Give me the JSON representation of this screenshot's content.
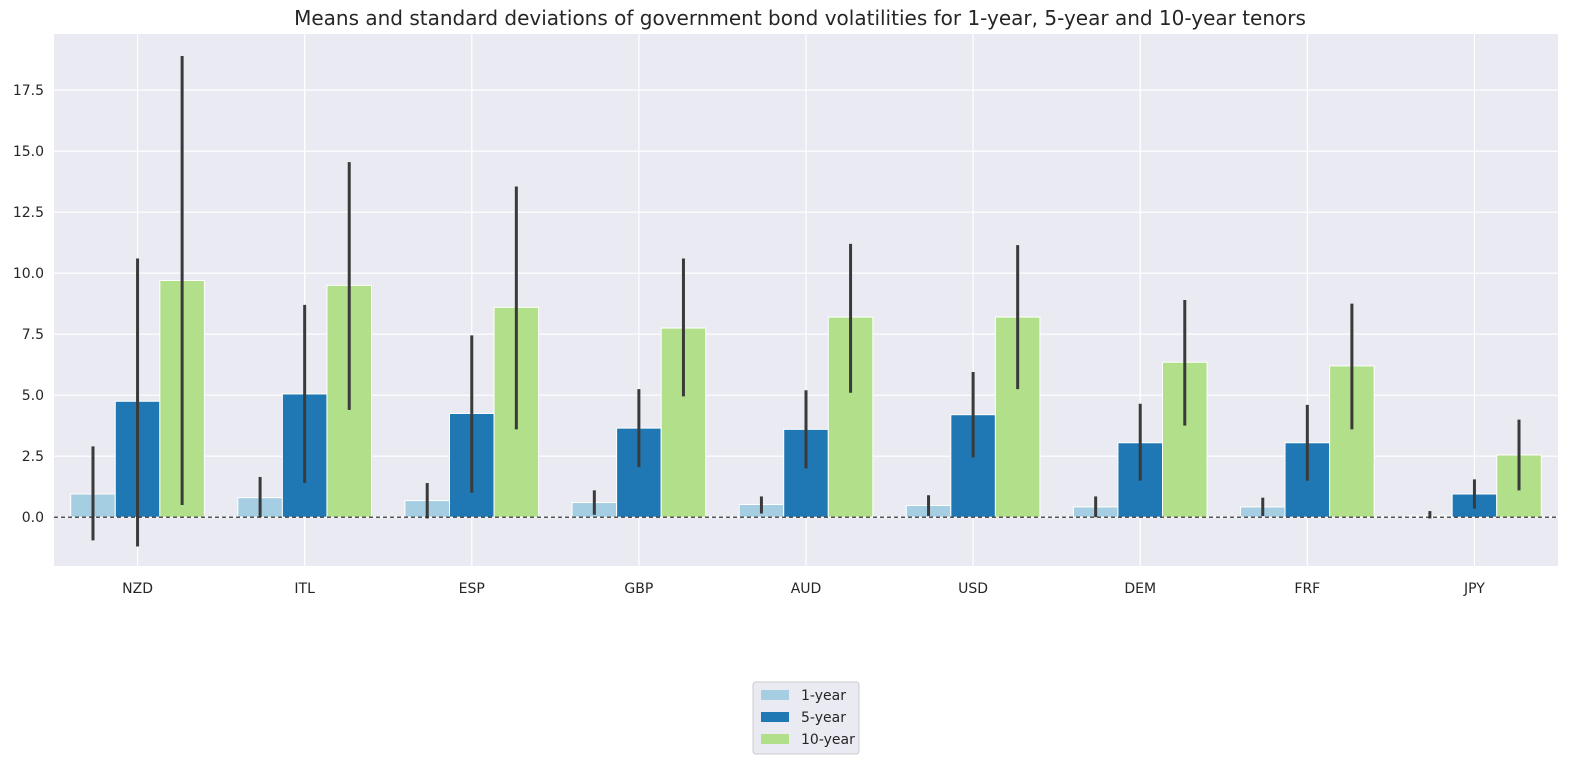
{
  "chart_data": {
    "type": "bar",
    "title": "Means and standard deviations of government bond volatilities for 1-year, 5-year and 10-year tenors",
    "xlabel": "",
    "ylabel": "",
    "categories": [
      "NZD",
      "ITL",
      "ESP",
      "GBP",
      "AUD",
      "USD",
      "DEM",
      "FRF",
      "JPY"
    ],
    "ylim": [
      -2.0,
      19.8
    ],
    "yticks": [
      "0.0",
      "2.5",
      "5.0",
      "7.5",
      "10.0",
      "12.5",
      "15.0",
      "17.5"
    ],
    "grid": true,
    "zero_line": "dashed",
    "legend_position": "bottom-center",
    "series": [
      {
        "name": "1-year",
        "color": "#a6cee3",
        "values": [
          0.95,
          0.8,
          0.68,
          0.6,
          0.52,
          0.48,
          0.42,
          0.42,
          0.05
        ],
        "err_low": [
          -0.95,
          0.0,
          -0.05,
          0.1,
          0.15,
          0.05,
          0.0,
          0.05,
          -0.05
        ],
        "err_high": [
          2.9,
          1.65,
          1.4,
          1.1,
          0.85,
          0.9,
          0.85,
          0.8,
          0.25
        ]
      },
      {
        "name": "5-year",
        "color": "#1f78b4",
        "values": [
          4.75,
          5.05,
          4.25,
          3.65,
          3.6,
          4.2,
          3.05,
          3.05,
          0.95
        ],
        "err_low": [
          -1.2,
          1.4,
          1.0,
          2.05,
          2.0,
          2.45,
          1.5,
          1.5,
          0.35
        ],
        "err_high": [
          10.6,
          8.7,
          7.45,
          5.25,
          5.2,
          5.95,
          4.65,
          4.6,
          1.55
        ]
      },
      {
        "name": "10-year",
        "color": "#b2df8a",
        "values": [
          9.7,
          9.5,
          8.6,
          7.75,
          8.2,
          8.2,
          6.35,
          6.2,
          2.55
        ],
        "err_low": [
          0.5,
          4.4,
          3.6,
          4.95,
          5.1,
          5.25,
          3.75,
          3.6,
          1.1
        ],
        "err_high": [
          18.9,
          14.55,
          13.55,
          10.6,
          11.2,
          11.15,
          8.9,
          8.75,
          4.0
        ]
      }
    ]
  }
}
